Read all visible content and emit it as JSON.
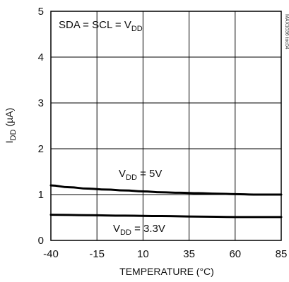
{
  "chart_data": {
    "type": "line",
    "title": "",
    "xlabel": "TEMPERATURE (°C)",
    "ylabel": {
      "main": "I",
      "sub": "DD",
      "unit": " (µA)"
    },
    "xlim": [
      -40,
      85
    ],
    "ylim": [
      0,
      5
    ],
    "xticks": [
      "-40",
      "-15",
      "10",
      "35",
      "60",
      "85"
    ],
    "yticks": [
      "0",
      "1",
      "2",
      "3",
      "4",
      "5"
    ],
    "grid": true,
    "legend": "none",
    "series": [
      {
        "name": "VDD = 5V",
        "x": [
          -40,
          -30,
          -20,
          -10,
          0,
          10,
          20,
          30,
          40,
          50,
          60,
          70,
          85
        ],
        "y": [
          1.2,
          1.16,
          1.13,
          1.11,
          1.09,
          1.07,
          1.05,
          1.04,
          1.03,
          1.02,
          1.01,
          1.0,
          1.0
        ]
      },
      {
        "name": "VDD = 3.3V",
        "x": [
          -40,
          -20,
          0,
          20,
          40,
          60,
          85
        ],
        "y": [
          0.56,
          0.55,
          0.54,
          0.53,
          0.52,
          0.51,
          0.51
        ]
      }
    ],
    "annotations": {
      "condition": {
        "main": "SDA = SCL = V",
        "sub": "DD",
        "tail": ""
      },
      "label_5v": {
        "main": "V",
        "sub": "DD",
        "tail": " = 5V"
      },
      "label_33v": {
        "main": "V",
        "sub": "DD",
        "tail": " = 3.3V"
      },
      "figure_code": "MAX1036 toc04"
    }
  }
}
